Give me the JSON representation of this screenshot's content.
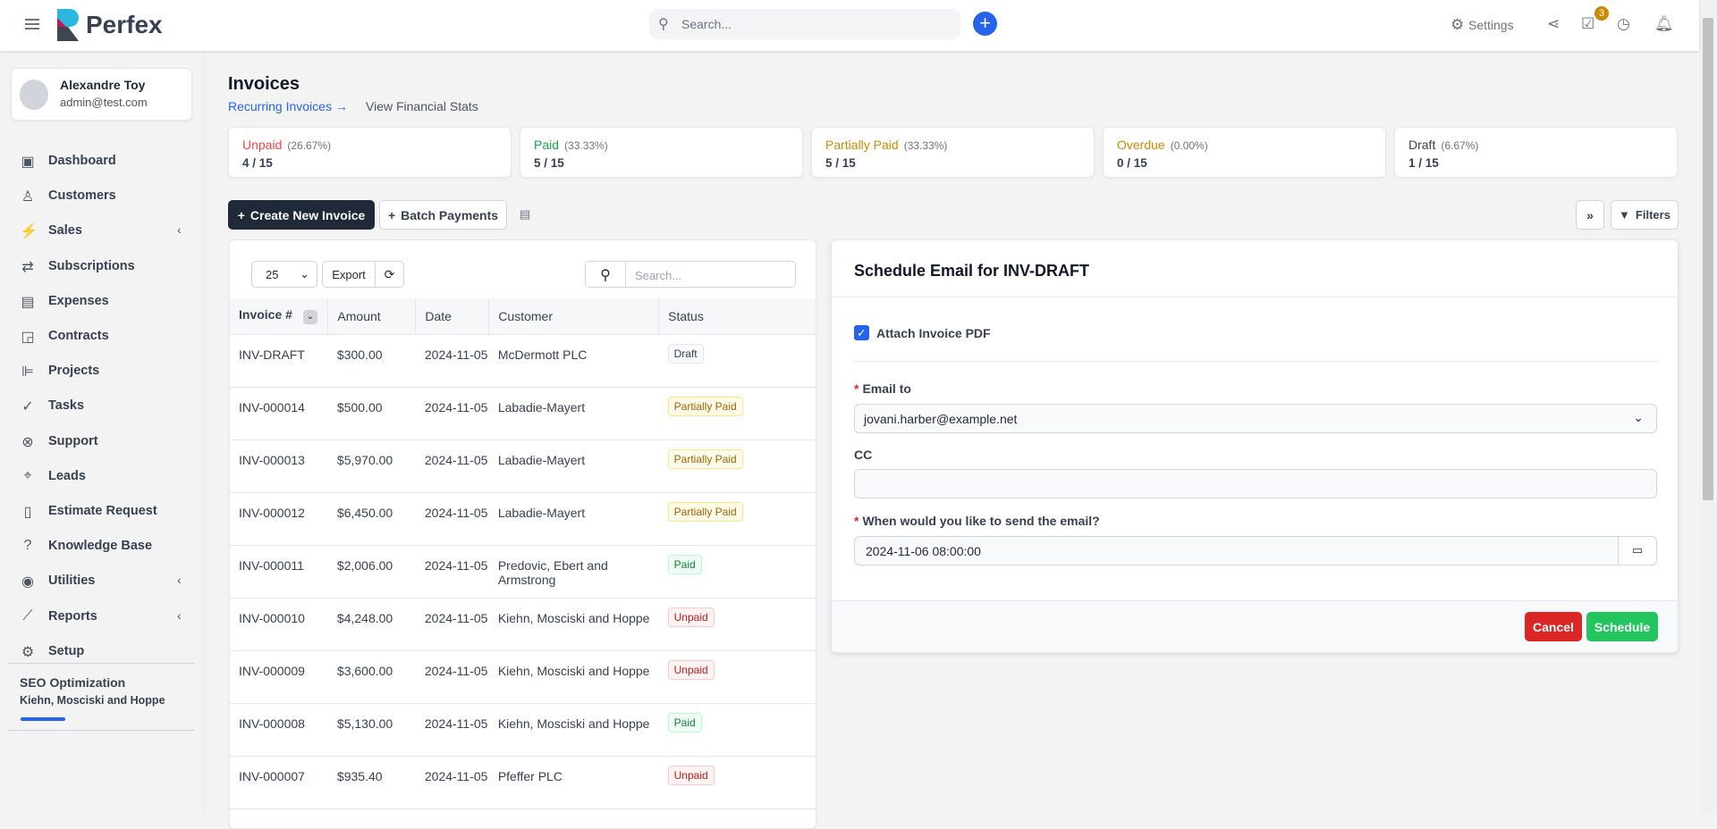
{
  "header": {
    "brand": "Perfex",
    "search_placeholder": "Search...",
    "settings_label": "Settings",
    "tasks_badge": "3"
  },
  "user": {
    "name": "Alexandre Toy",
    "email": "admin@test.com"
  },
  "sidebar": {
    "items": [
      {
        "label": "Dashboard",
        "icon": "dashboard-icon",
        "glyph": "▣"
      },
      {
        "label": "Customers",
        "icon": "user-icon",
        "glyph": "♙"
      },
      {
        "label": "Sales",
        "icon": "bolt-icon",
        "glyph": "⚡",
        "chevron": true
      },
      {
        "label": "Subscriptions",
        "icon": "repeat-icon",
        "glyph": "⇄"
      },
      {
        "label": "Expenses",
        "icon": "file-text-icon",
        "glyph": "▤"
      },
      {
        "label": "Contracts",
        "icon": "contract-icon",
        "glyph": "◲"
      },
      {
        "label": "Projects",
        "icon": "projects-icon",
        "glyph": "⊫"
      },
      {
        "label": "Tasks",
        "icon": "check-circle-icon",
        "glyph": "✓"
      },
      {
        "label": "Support",
        "icon": "lifebuoy-icon",
        "glyph": "⊗"
      },
      {
        "label": "Leads",
        "icon": "crosshair-icon",
        "glyph": "⌖"
      },
      {
        "label": "Estimate Request",
        "icon": "file-icon",
        "glyph": "▯"
      },
      {
        "label": "Knowledge Base",
        "icon": "question-circle-icon",
        "glyph": "?"
      },
      {
        "label": "Utilities",
        "icon": "dot-circle-icon",
        "glyph": "◉",
        "chevron": true
      },
      {
        "label": "Reports",
        "icon": "chart-line-icon",
        "glyph": "⟋",
        "chevron": true
      },
      {
        "label": "Setup",
        "icon": "cog-icon",
        "glyph": "⚙"
      }
    ],
    "project": {
      "name": "SEO Optimization",
      "customer": "Kiehn, Mosciski and Hoppe",
      "progress_color": "#2563eb"
    }
  },
  "page": {
    "title": "Invoices",
    "recurring_link": "Recurring Invoices →",
    "financial_link": "View Financial Stats"
  },
  "stats": [
    {
      "label": "Unpaid",
      "pct": "(26.67%)",
      "value": "4 / 15",
      "color": "#ef4444"
    },
    {
      "label": "Paid",
      "pct": "(33.33%)",
      "value": "5 / 15",
      "color": "#16a34a"
    },
    {
      "label": "Partially Paid",
      "pct": "(33.33%)",
      "value": "5 / 15",
      "color": "#ca8a04"
    },
    {
      "label": "Overdue",
      "pct": "(0.00%)",
      "value": "0 / 15",
      "color": "#ca8a04"
    },
    {
      "label": "Draft",
      "pct": "(6.67%)",
      "value": "1 / 15",
      "color": "#374151"
    }
  ],
  "toolbar": {
    "create": "Create New Invoice",
    "batch": "Batch Payments",
    "filters": "Filters",
    "page_size": "25",
    "export": "Export",
    "search_placeholder": "Search..."
  },
  "table": {
    "columns": [
      "Invoice #",
      "Amount",
      "Date",
      "Customer",
      "Status"
    ],
    "rows": [
      [
        "INV-DRAFT",
        "$300.00",
        "2024-11-05",
        "McDermott PLC",
        "Draft"
      ],
      [
        "INV-000014",
        "$500.00",
        "2024-11-05",
        "Labadie-Mayert",
        "Partially Paid"
      ],
      [
        "INV-000013",
        "$5,970.00",
        "2024-11-05",
        "Labadie-Mayert",
        "Partially Paid"
      ],
      [
        "INV-000012",
        "$6,450.00",
        "2024-11-05",
        "Labadie-Mayert",
        "Partially Paid"
      ],
      [
        "INV-000011",
        "$2,006.00",
        "2024-11-05",
        "Predovic, Ebert and Armstrong",
        "Paid"
      ],
      [
        "INV-000010",
        "$4,248.00",
        "2024-11-05",
        "Kiehn, Mosciski and Hoppe",
        "Unpaid"
      ],
      [
        "INV-000009",
        "$3,600.00",
        "2024-11-05",
        "Kiehn, Mosciski and Hoppe",
        "Unpaid"
      ],
      [
        "INV-000008",
        "$5,130.00",
        "2024-11-05",
        "Kiehn, Mosciski and Hoppe",
        "Paid"
      ],
      [
        "INV-000007",
        "$935.40",
        "2024-11-05",
        "Pfeffer PLC",
        "Unpaid"
      ]
    ]
  },
  "modal": {
    "title": "Schedule Email for INV-DRAFT",
    "attach_label": "Attach Invoice PDF",
    "attach_checked": true,
    "email_label": "Email to",
    "email_value": "jovani.harber@example.net",
    "cc_label": "CC",
    "cc_value": "",
    "when_label": "When would you like to send the email?",
    "when_value": "2024-11-06 08:00:00",
    "cancel": "Cancel",
    "schedule": "Schedule"
  }
}
